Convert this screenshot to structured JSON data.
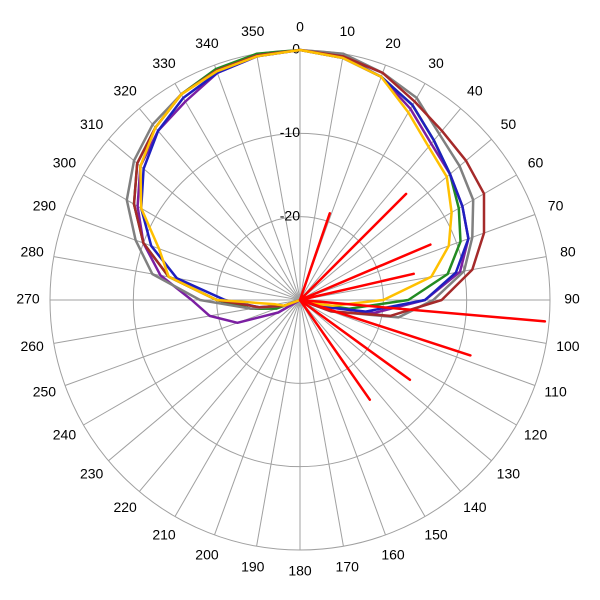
{
  "chart_data": {
    "type": "polar",
    "thetaticks": [
      0,
      10,
      20,
      30,
      40,
      50,
      60,
      70,
      80,
      90,
      100,
      110,
      120,
      130,
      140,
      150,
      160,
      170,
      180,
      190,
      200,
      210,
      220,
      230,
      240,
      250,
      260,
      270,
      280,
      290,
      300,
      310,
      320,
      330,
      340,
      350
    ],
    "rlim": [
      -30,
      0
    ],
    "rticks": [
      -20,
      -10,
      0
    ],
    "grid": true,
    "series": [
      {
        "color": "#228b22",
        "theta": [
          0,
          10,
          20,
          30,
          40,
          50,
          60,
          70,
          80,
          90,
          100,
          110,
          120,
          180,
          240,
          250,
          260,
          270,
          280,
          290,
          300,
          310,
          320,
          330,
          340,
          350
        ],
        "values": [
          0,
          -0.5,
          -1.5,
          -3,
          -5,
          -6.5,
          -8,
          -9.5,
          -12,
          -17,
          -24,
          -29,
          -30,
          -30,
          -30,
          -27,
          -24,
          -20,
          -14,
          -10,
          -7,
          -4.5,
          -3,
          -1.5,
          -0.5,
          0
        ]
      },
      {
        "color": "#7b1fa2",
        "theta": [
          0,
          10,
          20,
          30,
          40,
          50,
          60,
          70,
          80,
          90,
          100,
          110,
          120,
          180,
          240,
          250,
          260,
          270,
          280,
          290,
          300,
          310,
          320,
          330,
          340,
          350
        ],
        "values": [
          0,
          -0.5,
          -1.5,
          -3.5,
          -5.5,
          -6.5,
          -7.5,
          -8.5,
          -10.5,
          -15,
          -21,
          -28,
          -30,
          -30,
          -27,
          -22,
          -19,
          -17,
          -13,
          -10,
          -7.5,
          -5,
          -3.5,
          -2.5,
          -1,
          -0.3
        ]
      },
      {
        "color": "#1f1fbf",
        "theta": [
          0,
          10,
          20,
          30,
          40,
          50,
          60,
          70,
          80,
          90,
          100,
          110,
          120,
          180,
          240,
          250,
          260,
          270,
          280,
          290,
          300,
          310,
          320,
          330,
          340,
          350
        ],
        "values": [
          0,
          -0.3,
          -1.5,
          -3,
          -5,
          -6.5,
          -7.5,
          -8.5,
          -11,
          -15,
          -22,
          -28,
          -30,
          -30,
          -30,
          -28,
          -25,
          -21,
          -15,
          -11,
          -8,
          -5.5,
          -3.5,
          -2,
          -1,
          -0.3
        ]
      },
      {
        "color": "#808080",
        "theta": [
          0,
          10,
          20,
          30,
          40,
          50,
          60,
          70,
          80,
          90,
          100,
          110,
          120,
          180,
          240,
          250,
          260,
          270,
          280,
          290,
          300,
          310,
          320,
          330,
          340,
          350
        ],
        "values": [
          0,
          0,
          -1,
          -2,
          -4,
          -5,
          -6,
          -8,
          -10,
          -14,
          -18,
          -26,
          -30,
          -30,
          -30,
          -28,
          -24,
          -18,
          -12,
          -9,
          -6,
          -4,
          -2.5,
          -1.5,
          -0.7,
          -0.2
        ]
      },
      {
        "color": "#a52a2a",
        "theta": [
          0,
          10,
          20,
          30,
          40,
          50,
          60,
          70,
          80,
          90,
          100,
          110,
          120,
          180,
          240,
          250,
          260,
          270,
          280,
          290,
          300,
          310,
          320,
          330,
          340,
          350
        ],
        "values": [
          0,
          -0.3,
          -1,
          -2.5,
          -3.5,
          -4,
          -4.5,
          -6.5,
          -9,
          -13,
          -19,
          -26,
          -30,
          -30,
          -30,
          -28,
          -25,
          -20,
          -14,
          -10,
          -7,
          -4.5,
          -3,
          -1.5,
          -0.7,
          -0.2
        ]
      },
      {
        "color": "#ffc000",
        "theta": [
          0,
          10,
          20,
          30,
          40,
          50,
          60,
          70,
          80,
          90,
          100,
          110,
          120,
          180,
          240,
          250,
          260,
          270,
          280,
          290,
          300,
          310,
          320,
          330,
          340,
          350
        ],
        "values": [
          0,
          -0.5,
          -1.5,
          -4,
          -6,
          -7,
          -9,
          -11,
          -14,
          -20,
          -26,
          -29,
          -30,
          -30,
          -30,
          -28,
          -27,
          -20,
          -14,
          -12,
          -8,
          -5,
          -3,
          -1.5,
          -0.8,
          -0.3
        ]
      },
      {
        "color": "#ff0000",
        "theta": [
          0,
          12,
          19,
          24,
          30,
          40,
          45,
          50,
          58,
          63,
          67,
          71,
          74,
          77,
          80,
          86,
          90,
          95,
          99,
          103,
          108,
          113,
          118,
          126,
          133,
          140,
          145,
          150,
          160,
          180
        ],
        "values": [
          -30,
          -30,
          -19,
          -30,
          -30,
          -30,
          -12,
          -30,
          -30,
          -30,
          -13,
          -30,
          -30,
          -16,
          -30,
          -30,
          -30,
          -0.5,
          -30,
          -30,
          -8.5,
          -30,
          -30,
          -13.7,
          -30,
          -30,
          -15.4,
          -30,
          -30,
          -30
        ]
      }
    ]
  }
}
